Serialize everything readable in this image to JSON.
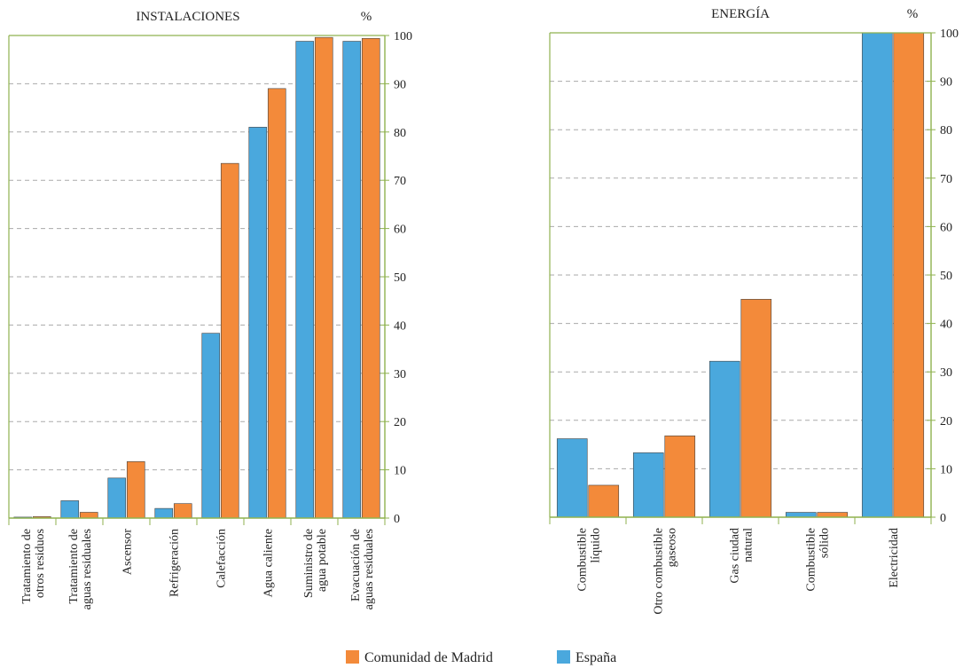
{
  "colors": {
    "madrid": "#f38a3a",
    "espana": "#4aa8dd",
    "axis": "#8fb24f",
    "grid": "#aaaaaa",
    "bar_stroke": "#444444"
  },
  "legend": [
    {
      "key": "madrid",
      "label": "Comunidad de Madrid"
    },
    {
      "key": "espana",
      "label": "España"
    }
  ],
  "chart_data": [
    {
      "type": "bar",
      "title": "INSTALACIONES",
      "ylabel": "%",
      "ylim": [
        0,
        100
      ],
      "yticks": [
        0,
        10,
        20,
        30,
        40,
        50,
        60,
        70,
        80,
        90,
        100
      ],
      "grid": true,
      "categories": [
        [
          "Tratamiento de",
          "otros residuos"
        ],
        [
          "Tratamiento de",
          "aguas residuales"
        ],
        [
          "Ascensor"
        ],
        [
          "Refrigeración"
        ],
        [
          "Calefacción"
        ],
        [
          "Agua caliente"
        ],
        [
          "Suministro de",
          "agua potable"
        ],
        [
          "Evacuación de",
          "aguas residuales"
        ]
      ],
      "series": [
        {
          "name": "España",
          "values": [
            0.2,
            3.6,
            8.3,
            2.0,
            38.3,
            81.0,
            98.8,
            98.8
          ]
        },
        {
          "name": "Comunidad de Madrid",
          "values": [
            0.3,
            1.2,
            11.7,
            3.0,
            73.5,
            89.0,
            99.6,
            99.4
          ]
        }
      ]
    },
    {
      "type": "bar",
      "title": "ENERGÍA",
      "ylabel": "%",
      "ylim": [
        0,
        100
      ],
      "yticks": [
        0,
        10,
        20,
        30,
        40,
        50,
        60,
        70,
        80,
        90,
        100
      ],
      "grid": true,
      "categories": [
        [
          "Combustible",
          "líquido"
        ],
        [
          "Otro combustible",
          "gaseoso"
        ],
        [
          "Gas ciudad",
          "natural"
        ],
        [
          "Combustible",
          "sólido"
        ],
        [
          "Electricidad"
        ]
      ],
      "series": [
        {
          "name": "España",
          "values": [
            16.2,
            13.3,
            32.2,
            1.0,
            100.0
          ]
        },
        {
          "name": "Comunidad de Madrid",
          "values": [
            6.6,
            16.8,
            45.0,
            1.0,
            100.0
          ]
        }
      ]
    }
  ]
}
